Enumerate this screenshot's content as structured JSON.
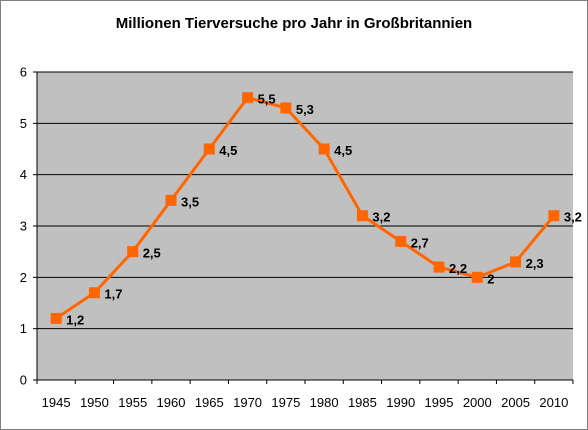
{
  "chart_data": {
    "type": "line",
    "title": "Millionen Tierversuche pro Jahr in Großbritannien",
    "xlabel": "",
    "ylabel": "",
    "categories": [
      "1945",
      "1950",
      "1955",
      "1960",
      "1965",
      "1970",
      "1975",
      "1980",
      "1985",
      "1990",
      "1995",
      "2000",
      "2005",
      "2010"
    ],
    "series": [
      {
        "values": [
          1.2,
          1.7,
          2.5,
          3.5,
          4.5,
          5.5,
          5.3,
          4.5,
          3.2,
          2.7,
          2.2,
          2.0,
          2.3,
          3.2
        ],
        "data_labels": [
          "1,2",
          "1,7",
          "2,5",
          "3,5",
          "4,5",
          "5,5",
          "5,3",
          "4,5",
          "3,2",
          "2,7",
          "2,2",
          "2",
          "2,3",
          "3,2"
        ],
        "color": "#ff6600",
        "marker": "square"
      }
    ],
    "ylim": [
      0,
      6
    ],
    "yticks": [
      "0",
      "1",
      "2",
      "3",
      "4",
      "5",
      "6"
    ],
    "grid": true,
    "legend": "none",
    "plot_background": "#c0c0c0",
    "gridline_color": "#000000"
  }
}
